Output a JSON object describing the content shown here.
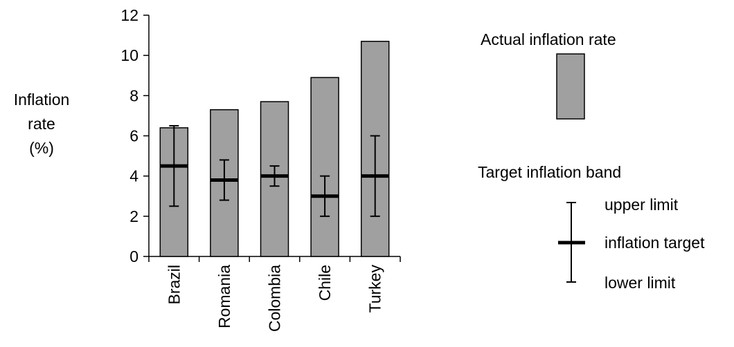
{
  "chart_data": {
    "type": "bar",
    "categories": [
      "Brazil",
      "Romania",
      "Colombia",
      "Chile",
      "Turkey"
    ],
    "series": [
      {
        "values": [
          6.4,
          7.3,
          7.7,
          8.9,
          10.7
        ]
      }
    ],
    "target_band": [
      {
        "category": "Brazil",
        "lower": 2.5,
        "target": 4.5,
        "upper": 6.5
      },
      {
        "category": "Romania",
        "lower": 2.8,
        "target": 3.8,
        "upper": 4.8
      },
      {
        "category": "Colombia",
        "lower": 3.5,
        "target": 4.0,
        "upper": 4.5
      },
      {
        "category": "Chile",
        "lower": 2.0,
        "target": 3.0,
        "upper": 4.0
      },
      {
        "category": "Turkey",
        "lower": 2.0,
        "target": 4.0,
        "upper": 6.0
      }
    ],
    "ylabel_lines": [
      "Inflation",
      "rate",
      "(%)"
    ],
    "xlabel": "",
    "title": "",
    "ylim": [
      0,
      12
    ],
    "yticks": [
      0,
      2,
      4,
      6,
      8,
      10,
      12
    ],
    "grid": false,
    "legend": {
      "placement": "right",
      "bar_title": "Actual inflation rate",
      "band_title": "Target inflation band",
      "upper": "upper limit",
      "target": "inflation target",
      "lower": "lower limit"
    },
    "colors": {
      "bar_fill": "#a0a0a0",
      "bar_stroke": "#000000",
      "band": "#000000"
    }
  }
}
